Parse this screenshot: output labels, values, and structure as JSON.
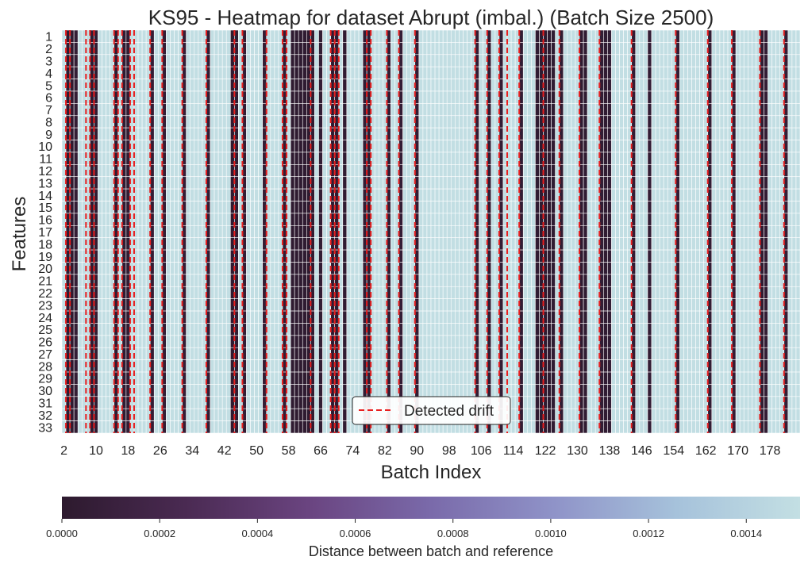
{
  "chart_data": {
    "type": "heatmap",
    "title": "KS95 - Heatmap for dataset Abrupt (imbal.) (Batch Size 2500)",
    "xlabel": "Batch Index",
    "ylabel": "Features",
    "x_range": [
      2,
      185
    ],
    "x_ticks": [
      "2",
      "10",
      "18",
      "26",
      "34",
      "42",
      "50",
      "58",
      "66",
      "74",
      "82",
      "90",
      "98",
      "106",
      "114",
      "122",
      "130",
      "138",
      "146",
      "154",
      "162",
      "170",
      "178"
    ],
    "y_ticks": [
      "1",
      "2",
      "3",
      "4",
      "5",
      "6",
      "7",
      "8",
      "9",
      "10",
      "11",
      "12",
      "13",
      "14",
      "15",
      "16",
      "17",
      "18",
      "19",
      "20",
      "21",
      "22",
      "23",
      "24",
      "25",
      "26",
      "27",
      "28",
      "29",
      "30",
      "31",
      "32",
      "33"
    ],
    "colorbar": {
      "label": "Distance between batch and reference",
      "range": [
        0.0,
        0.00151
      ],
      "ticks": [
        "0.0000",
        "0.0002",
        "0.0004",
        "0.0006",
        "0.0008",
        "0.0010",
        "0.0012",
        "0.0014"
      ],
      "colormap": [
        "#2d1a2e",
        "#4a2a52",
        "#6a4480",
        "#7a6aaa",
        "#8f93c8",
        "#a6c2db",
        "#c3dfe3"
      ]
    },
    "legend": {
      "entries": [
        "Detected drift"
      ],
      "placement": "lower center",
      "line_color": "#e81f1f"
    },
    "drift_batches": [
      3,
      4,
      8,
      9,
      10,
      15,
      16,
      17,
      19,
      20,
      24,
      27,
      32,
      38,
      45,
      47,
      53,
      57,
      58,
      64,
      69,
      70,
      71,
      78,
      79,
      83,
      86,
      90,
      105,
      108,
      111,
      113,
      116,
      122,
      126,
      131,
      136,
      144,
      155,
      163,
      169,
      176,
      182
    ],
    "low_distance_columns": [
      {
        "batch": 3,
        "value": 2e-05
      },
      {
        "batch": 4,
        "value": 2e-05
      },
      {
        "batch": 5,
        "value": 4e-05
      },
      {
        "batch": 9,
        "value": 2e-05
      },
      {
        "batch": 10,
        "value": 3e-05
      },
      {
        "batch": 15,
        "value": 2e-05
      },
      {
        "batch": 17,
        "value": 3e-05
      },
      {
        "batch": 18,
        "value": 4e-05
      },
      {
        "batch": 24,
        "value": 5e-05
      },
      {
        "batch": 27,
        "value": 4e-05
      },
      {
        "batch": 32,
        "value": 5e-05
      },
      {
        "batch": 38,
        "value": 4e-05
      },
      {
        "batch": 44,
        "value": 2e-05
      },
      {
        "batch": 45,
        "value": 3e-05
      },
      {
        "batch": 47,
        "value": 4e-05
      },
      {
        "batch": 52,
        "value": 4e-05
      },
      {
        "batch": 57,
        "value": 3e-05
      },
      {
        "batch": 59,
        "value": 2e-05
      },
      {
        "batch": 60,
        "value": 2e-05
      },
      {
        "batch": 61,
        "value": 2e-05
      },
      {
        "batch": 62,
        "value": 2e-05
      },
      {
        "batch": 63,
        "value": 2e-05
      },
      {
        "batch": 64,
        "value": 3e-05
      },
      {
        "batch": 66,
        "value": 4e-05
      },
      {
        "batch": 69,
        "value": 2e-05
      },
      {
        "batch": 70,
        "value": 2e-05
      },
      {
        "batch": 72,
        "value": 3e-05
      },
      {
        "batch": 77,
        "value": 4e-05
      },
      {
        "batch": 78,
        "value": 3e-05
      },
      {
        "batch": 83,
        "value": 4e-05
      },
      {
        "batch": 86,
        "value": 5e-05
      },
      {
        "batch": 90,
        "value": 4e-05
      },
      {
        "batch": 105,
        "value": 4e-05
      },
      {
        "batch": 108,
        "value": 3e-05
      },
      {
        "batch": 111,
        "value": 4e-05
      },
      {
        "batch": 116,
        "value": 4e-05
      },
      {
        "batch": 120,
        "value": 3e-05
      },
      {
        "batch": 121,
        "value": 2e-05
      },
      {
        "batch": 122,
        "value": 2e-05
      },
      {
        "batch": 123,
        "value": 2e-05
      },
      {
        "batch": 124,
        "value": 3e-05
      },
      {
        "batch": 126,
        "value": 3e-05
      },
      {
        "batch": 131,
        "value": 2e-05
      },
      {
        "batch": 132,
        "value": 3e-05
      },
      {
        "batch": 136,
        "value": 4e-05
      },
      {
        "batch": 137,
        "value": 3e-05
      },
      {
        "batch": 138,
        "value": 4e-05
      },
      {
        "batch": 144,
        "value": 4e-05
      },
      {
        "batch": 148,
        "value": 5e-05
      },
      {
        "batch": 155,
        "value": 4e-05
      },
      {
        "batch": 163,
        "value": 4e-05
      },
      {
        "batch": 169,
        "value": 5e-05
      },
      {
        "batch": 176,
        "value": 3e-05
      },
      {
        "batch": 177,
        "value": 4e-05
      },
      {
        "batch": 182,
        "value": 5e-05
      }
    ],
    "background_value": 0.0015
  }
}
